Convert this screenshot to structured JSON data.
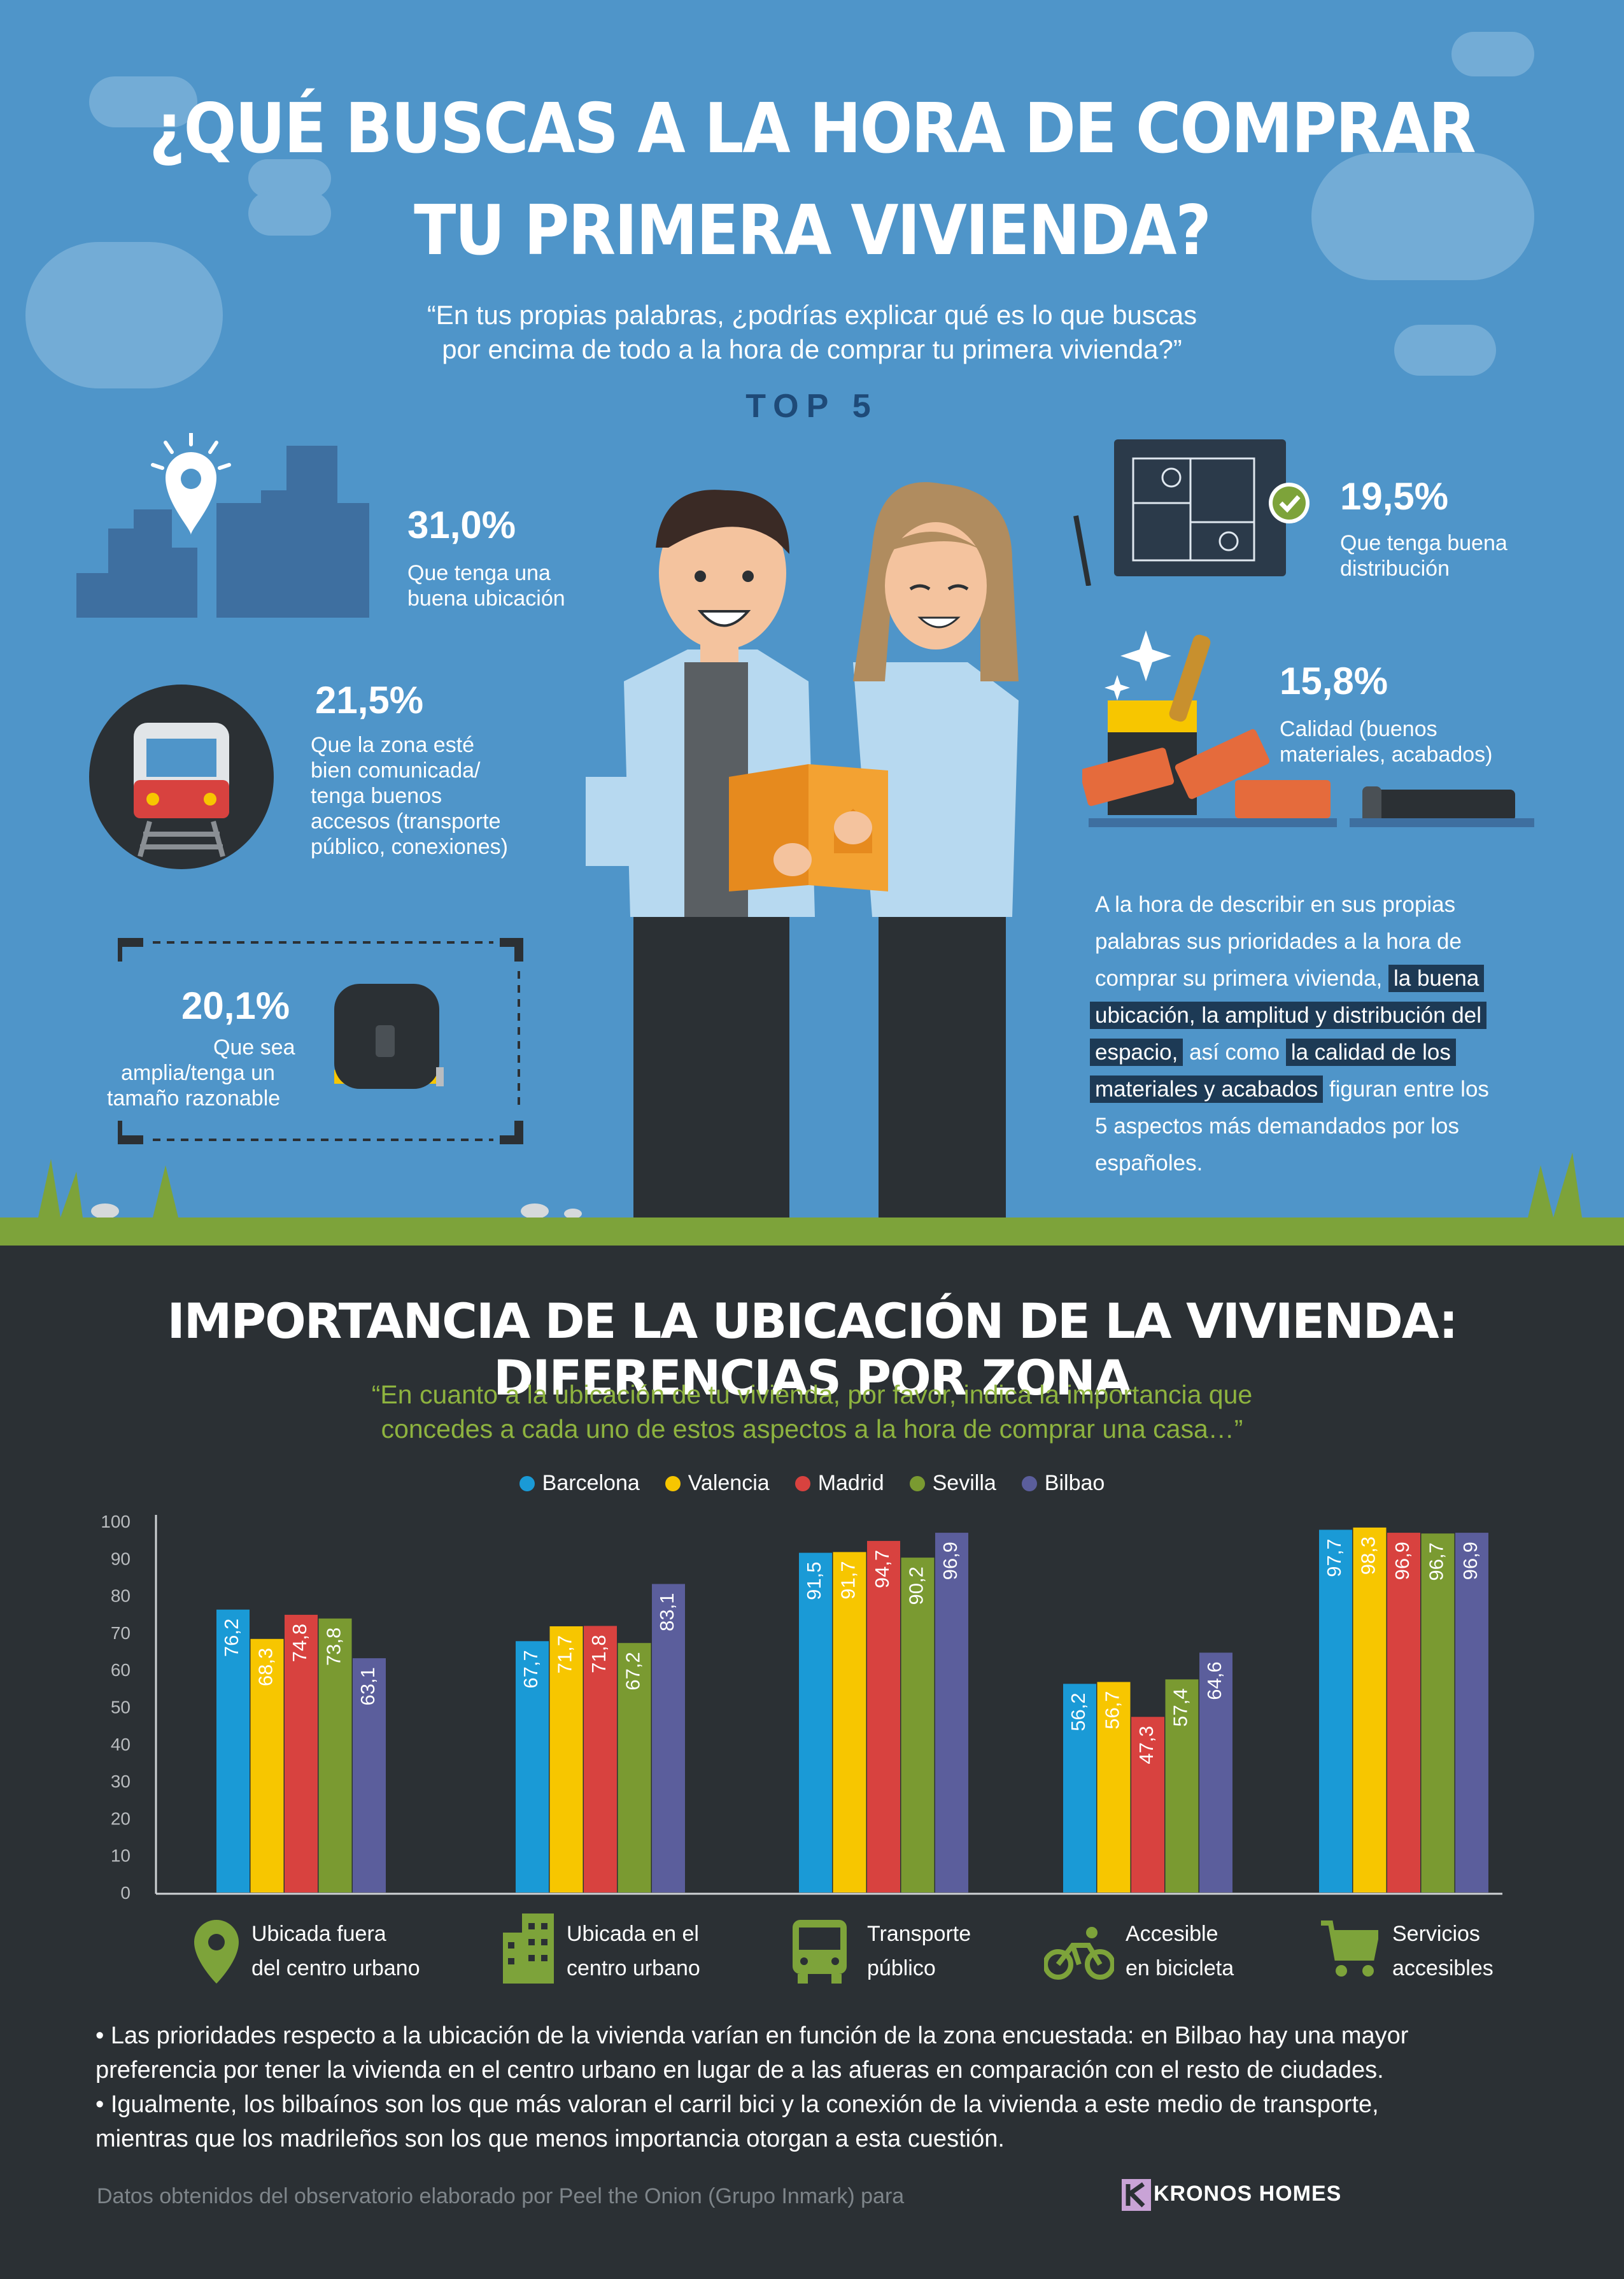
{
  "header": {
    "title_line1": "¿QUÉ BUSCAS A LA HORA DE COMPRAR",
    "title_line2": "TU PRIMERA VIVIENDA?",
    "quote_line1": "“En tus propias palabras, ¿podrías explicar qué es lo que buscas",
    "quote_line2": "por encima de todo a la hora de comprar tu primera vivienda?”",
    "top5": "TOP 5"
  },
  "top5_items": [
    {
      "pct": "31,0%",
      "lines": [
        "Que tenga una",
        "buena ubicación"
      ],
      "icon": "city-location-icon"
    },
    {
      "pct": "21,5%",
      "lines": [
        "Que la zona esté",
        "bien comunicada/",
        "tenga buenos",
        "accesos (transporte",
        "público, conexiones)"
      ],
      "icon": "train-icon"
    },
    {
      "pct": "20,1%",
      "lines": [
        "Que sea",
        "amplia/tenga un",
        "tamaño razonable"
      ],
      "icon": "tape-measure-icon"
    },
    {
      "pct": "19,5%",
      "lines": [
        "Que tenga buena",
        "distribución"
      ],
      "icon": "floor-plan-icon"
    },
    {
      "pct": "15,8%",
      "lines": [
        "Calidad (buenos",
        "materiales, acabados)"
      ],
      "icon": "paint-bricks-icon"
    }
  ],
  "summary": {
    "l1": "A la hora de describir en sus propias",
    "l2": "palabras sus prioridades a la hora de",
    "l3a": "comprar su primera vivienda, ",
    "l3b": "la buena",
    "l4": "ubicación, la amplitud y distribución del",
    "l5a": "espacio,",
    "l5b": " así como ",
    "l5c": "la calidad de los",
    "l6a": "materiales y acabados",
    "l6b": " figuran entre los",
    "l7": "5 aspectos más demandados por los",
    "l8": "españoles."
  },
  "section2": {
    "title": "IMPORTANCIA DE LA UBICACIÓN DE LA VIVIENDA: DIFERENCIAS POR ZONA",
    "quote_line1": "“En cuanto a la ubicación de tu vivienda, por favor, indica la importancia que",
    "quote_line2": "concedes a cada uno de estos aspectos a la hora de comprar una casa…”"
  },
  "chart_data": {
    "type": "bar",
    "categories": [
      "Ubicada fuera del centro urbano",
      "Ubicada en el centro urbano",
      "Transporte público",
      "Accesible en bicicleta",
      "Servicios accesibles"
    ],
    "category_lines": [
      [
        "Ubicada fuera",
        "del centro urbano"
      ],
      [
        "Ubicada en el",
        "centro urbano"
      ],
      [
        "Transporte",
        "público"
      ],
      [
        "Accesible",
        "en bicicleta"
      ],
      [
        "Servicios",
        "accesibles"
      ]
    ],
    "category_icons": [
      "map-pin-icon",
      "buildings-icon",
      "bus-icon",
      "bicycle-icon",
      "shopping-cart-icon"
    ],
    "series": [
      {
        "name": "Barcelona",
        "color": "#1a9ad6",
        "values": [
          76.2,
          67.7,
          91.5,
          56.2,
          97.7
        ],
        "labels": [
          "76,2",
          "67,7",
          "91,5",
          "56,2",
          "97,7"
        ]
      },
      {
        "name": "Valencia",
        "color": "#f7c600",
        "values": [
          68.3,
          71.7,
          91.7,
          56.7,
          98.3
        ],
        "labels": [
          "68,3",
          "71,7",
          "91,7",
          "56,7",
          "98,3"
        ]
      },
      {
        "name": "Madrid",
        "color": "#d8423f",
        "values": [
          74.8,
          71.8,
          94.7,
          47.3,
          96.9
        ],
        "labels": [
          "74,8",
          "71,8",
          "94,7",
          "47,3",
          "96,9"
        ]
      },
      {
        "name": "Sevilla",
        "color": "#7a9a31",
        "values": [
          73.8,
          67.2,
          90.2,
          57.4,
          96.7
        ],
        "labels": [
          "73,8",
          "67,2",
          "90,2",
          "57,4",
          "96,7"
        ]
      },
      {
        "name": "Bilbao",
        "color": "#5b5e9c",
        "values": [
          63.1,
          83.1,
          96.9,
          64.6,
          96.9
        ],
        "labels": [
          "63,1",
          "83,1",
          "96,9",
          "64,6",
          "96,9"
        ]
      }
    ],
    "yticks": [
      "100",
      "90",
      "80",
      "70",
      "60",
      "50",
      "40",
      "30",
      "20",
      "10",
      "0"
    ],
    "ylim": [
      0,
      100
    ],
    "grid": false,
    "legend_position": "top"
  },
  "notes": {
    "line1": "• Las prioridades respecto a la ubicación de la vivienda varían en función de la zona encuestada: en Bilbao hay una mayor",
    "line2": "preferencia por tener la vivienda en el centro urbano en lugar de a las afueras en comparación con el resto de ciudades.",
    "line3": "• Igualmente, los bilbaínos son los que más valoran el carril bici y la conexión de la vivienda a este medio de transporte,",
    "line4": "mientras que los madrileños son los que menos importancia otorgan a esta cuestión."
  },
  "footer": {
    "source": "Datos obtenidos del observatorio elaborado por Peel the Onion (Grupo Inmark) para",
    "brand": "KRONOS HOMES"
  }
}
